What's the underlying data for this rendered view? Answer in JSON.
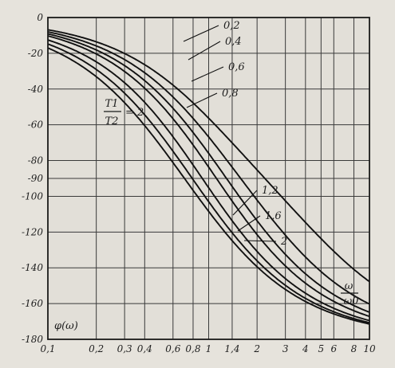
{
  "chart_data": {
    "type": "line",
    "x_scale": "log",
    "grid": true,
    "xlim": [
      0.1,
      10
    ],
    "ylim": [
      -180,
      0
    ],
    "x_tick_labels": [
      "0,1",
      "0,2",
      "0,3",
      "0,4",
      "0,6",
      "0,8",
      "1",
      "1,4",
      "2",
      "3",
      "4",
      "5",
      "6",
      "8",
      "10"
    ],
    "x_ticks": [
      0.1,
      0.2,
      0.3,
      0.4,
      0.6,
      0.8,
      1,
      1.4,
      2,
      3,
      4,
      5,
      6,
      8,
      10
    ],
    "y_ticks": [
      0,
      -20,
      -40,
      -60,
      -80,
      -90,
      -100,
      -120,
      -140,
      -160,
      -180
    ],
    "y_tick_labels": [
      "0",
      "-20",
      "-40",
      "-60",
      "-80",
      "-90",
      "-100",
      "-120",
      "-140",
      "-160",
      "-180"
    ],
    "ylabel": "φ(ω)",
    "xlabel_num": "ω",
    "xlabel_den": "ω0",
    "ratio_label": {
      "num": "T1",
      "den": "T2",
      "value": "= 2"
    },
    "series": [
      {
        "name": "0,2",
        "r": 0.2
      },
      {
        "name": "0,4",
        "r": 0.4
      },
      {
        "name": "0,6",
        "r": 0.6
      },
      {
        "name": "0,8",
        "r": 0.8
      },
      {
        "name": "1,2",
        "r": 1.2
      },
      {
        "name": "1,6",
        "r": 1.6
      },
      {
        "name": "2",
        "r": 2
      }
    ]
  }
}
